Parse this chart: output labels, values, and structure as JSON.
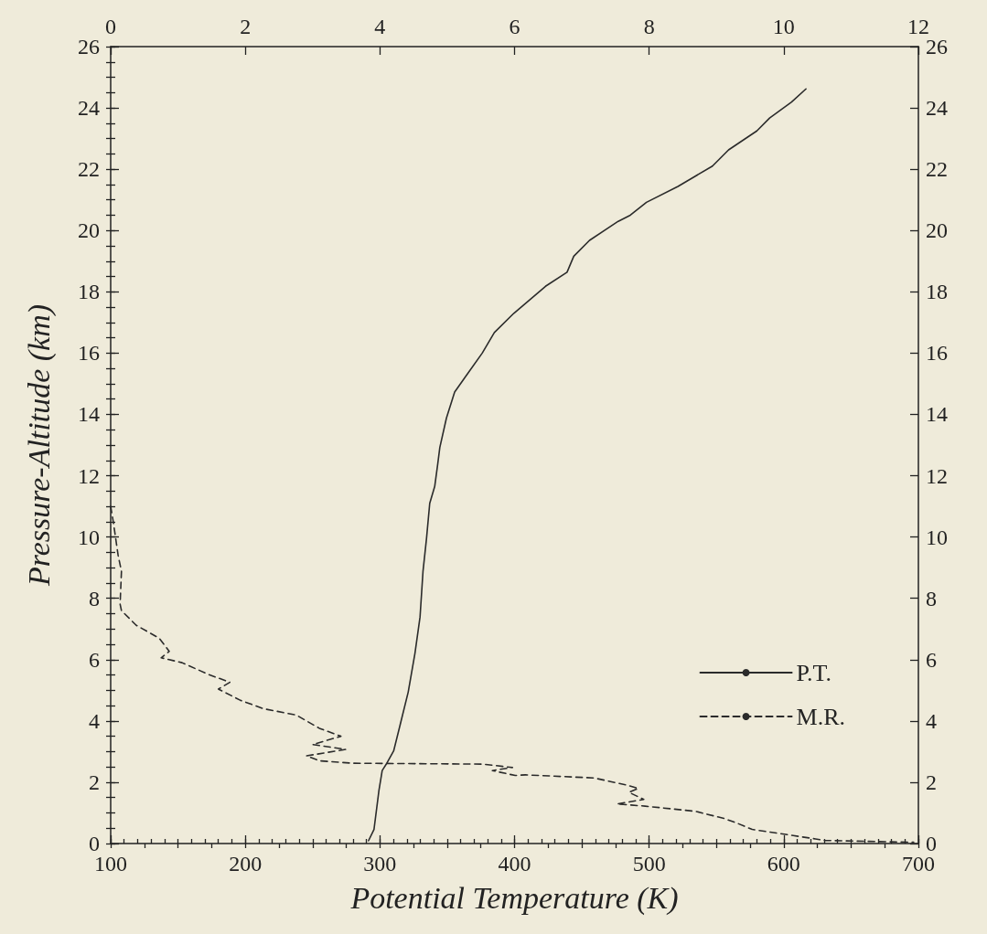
{
  "chart_data": {
    "type": "line",
    "xlabel": "Potential Temperature (K)",
    "ylabel": "Pressure-Altitude (km)",
    "xlim": [
      100,
      700
    ],
    "xticks": [
      100,
      200,
      300,
      400,
      500,
      600,
      700
    ],
    "x2lim": [
      0,
      12
    ],
    "x2ticks": [
      0,
      2,
      4,
      6,
      8,
      10,
      12
    ],
    "ylim": [
      0,
      26
    ],
    "yticks": [
      0,
      2,
      4,
      6,
      8,
      10,
      12,
      14,
      16,
      18,
      20,
      22,
      24,
      26
    ],
    "y2lim": [
      0,
      26
    ],
    "y2ticks": [
      0,
      2,
      4,
      6,
      8,
      10,
      12,
      14,
      16,
      18,
      20,
      22,
      24,
      26
    ],
    "legend": "bottom right",
    "series": [
      {
        "name": "P.T.",
        "color": "#2b2b2b",
        "line_style": "solid",
        "x": [
          291.5,
          295.6,
          299.3,
          301.7,
          305.4,
          310.2,
          315,
          321,
          326,
          329.8,
          332,
          334.6,
          337,
          340.7,
          343,
          344.5,
          349.4,
          355.5,
          364,
          376,
          385,
          399.5,
          423,
          439,
          444,
          455.7,
          477,
          486,
          498,
          521.4,
          547,
          559,
          580,
          589.5,
          605.8,
          616.5
        ],
        "values": [
          0.09,
          0.46,
          1.74,
          2.38,
          2.64,
          3.02,
          3.87,
          4.94,
          6.2,
          7.39,
          8.88,
          9.95,
          11.1,
          11.65,
          12.4,
          12.92,
          13.88,
          14.73,
          15.26,
          16.0,
          16.67,
          17.3,
          18.18,
          18.64,
          19.16,
          19.68,
          20.3,
          20.5,
          20.92,
          21.44,
          22.1,
          22.63,
          23.25,
          23.67,
          24.19,
          24.62
        ]
      },
      {
        "name": "M.R.",
        "color": "#2b2b2b",
        "line_style": "dashed",
        "axis": "x2",
        "x": [
          0,
          0.04,
          0.11,
          0.16,
          0.14,
          0.16,
          0.38,
          0.72,
          0.87,
          0.75,
          1.06,
          1.45,
          1.77,
          1.6,
          1.93,
          2.27,
          2.76,
          3.1,
          3.42,
          3.0,
          3.49,
          2.91,
          3.1,
          3.59,
          5.53,
          5.97,
          5.67,
          6.01,
          6.16,
          7.18,
          7.66,
          7.84,
          7.7,
          7.92,
          7.52,
          7.94,
          8.69,
          9.11,
          9.3,
          9.53,
          10.14,
          10.47,
          10.61,
          11.93
        ],
        "values": [
          11.0,
          10.48,
          9.41,
          8.88,
          7.81,
          7.6,
          7.12,
          6.7,
          6.27,
          6.06,
          5.9,
          5.52,
          5.26,
          5.04,
          4.67,
          4.4,
          4.19,
          3.76,
          3.5,
          3.23,
          3.07,
          2.86,
          2.7,
          2.62,
          2.59,
          2.48,
          2.38,
          2.22,
          2.24,
          2.14,
          1.91,
          1.8,
          1.67,
          1.44,
          1.29,
          1.22,
          1.05,
          0.82,
          0.67,
          0.46,
          0.26,
          0.15,
          0.1,
          0.04
        ]
      }
    ]
  }
}
